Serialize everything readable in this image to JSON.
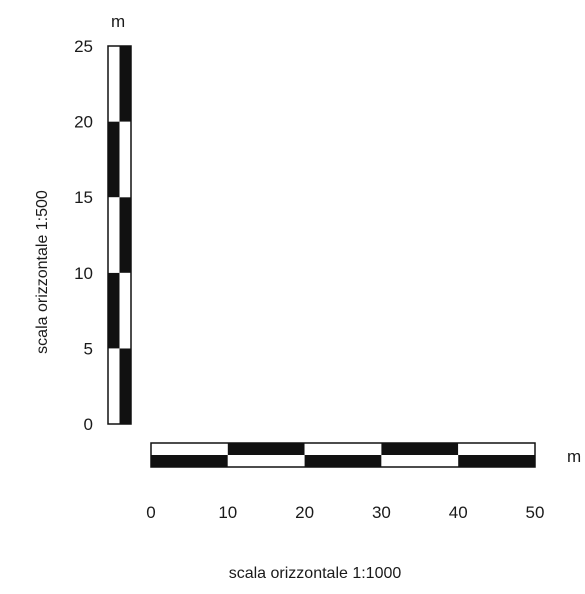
{
  "vertical_scale": {
    "unit": "m",
    "caption": "scala orizzontale 1:500",
    "ticks": [
      "0",
      "5",
      "10",
      "15",
      "20",
      "25"
    ],
    "range": [
      0,
      25
    ],
    "segment_step": 5
  },
  "horizontal_scale": {
    "unit": "m",
    "caption": "scala orizzontale 1:1000",
    "ticks": [
      "0",
      "10",
      "20",
      "30",
      "40",
      "50"
    ],
    "range": [
      0,
      50
    ],
    "segment_step": 10
  },
  "colors": {
    "dark": "#111111",
    "light": "#ffffff",
    "text": "#1a1a1a"
  }
}
